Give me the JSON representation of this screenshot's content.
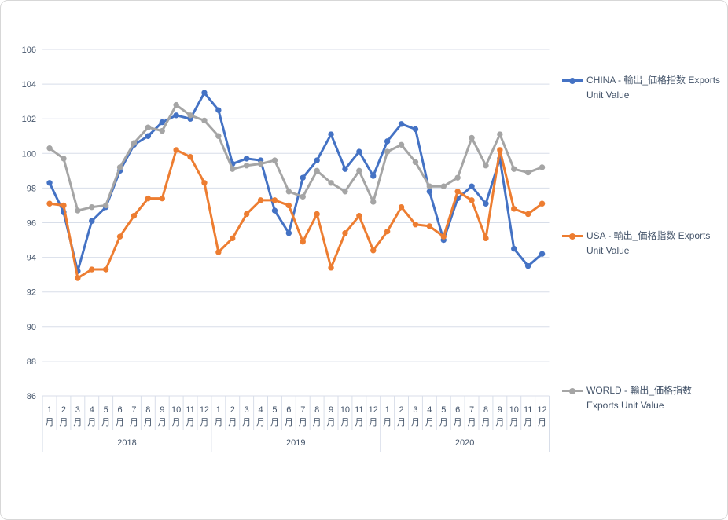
{
  "chart_data": {
    "type": "line",
    "title": "",
    "grid": true,
    "legend_position": "right",
    "colors": {
      "china": "#4472C4",
      "usa": "#ED7D31",
      "world": "#A5A5A5",
      "gridline": "#d8dee9",
      "axis_text": "#44546a"
    },
    "y_axis": {
      "min": 86,
      "max": 106,
      "step": 2,
      "ticks": [
        "106",
        "104",
        "102",
        "100",
        "98",
        "96",
        "94",
        "92",
        "90",
        "88",
        "86"
      ]
    },
    "x_axis": {
      "month_numbers": [
        "1",
        "2",
        "3",
        "4",
        "5",
        "6",
        "7",
        "8",
        "9",
        "10",
        "11",
        "12"
      ],
      "month_suffix": "月",
      "years": [
        "2018",
        "2019",
        "2020"
      ]
    },
    "series": [
      {
        "name": "CHINA",
        "legend": "CHINA - 輸出_価格指数 Exports Unit Value",
        "color": "#4472C4",
        "values": [
          98.3,
          96.6,
          93.2,
          96.1,
          96.9,
          99.0,
          100.5,
          101.0,
          101.8,
          102.2,
          102.0,
          103.5,
          102.5,
          99.4,
          99.7,
          99.6,
          96.7,
          95.4,
          98.6,
          99.6,
          101.1,
          99.1,
          100.1,
          98.7,
          100.7,
          101.7,
          101.4,
          97.8,
          95.0,
          97.4,
          98.1,
          97.1,
          99.7,
          94.5,
          93.5,
          94.2
        ]
      },
      {
        "name": "USA",
        "legend": "USA - 輸出_価格指数 Exports Unit Value",
        "color": "#ED7D31",
        "values": [
          97.1,
          97.0,
          92.8,
          93.3,
          93.3,
          95.2,
          96.4,
          97.4,
          97.4,
          100.2,
          99.8,
          98.3,
          94.3,
          95.1,
          96.5,
          97.3,
          97.3,
          97.0,
          94.9,
          96.5,
          93.4,
          95.4,
          96.4,
          94.4,
          95.5,
          96.9,
          95.9,
          95.8,
          95.2,
          97.8,
          97.3,
          95.1,
          100.2,
          96.8,
          96.5,
          97.1
        ]
      },
      {
        "name": "WORLD",
        "legend": "WORLD - 輸出_価格指数 Exports Unit Value",
        "color": "#A5A5A5",
        "values": [
          100.3,
          99.7,
          96.7,
          96.9,
          97.0,
          99.2,
          100.6,
          101.5,
          101.3,
          102.8,
          102.2,
          101.9,
          101.0,
          99.1,
          99.3,
          99.4,
          99.6,
          97.8,
          97.5,
          99.0,
          98.3,
          97.8,
          99.0,
          97.2,
          100.1,
          100.5,
          99.5,
          98.1,
          98.1,
          98.6,
          100.9,
          99.3,
          101.1,
          99.1,
          98.9,
          99.2
        ]
      }
    ]
  }
}
